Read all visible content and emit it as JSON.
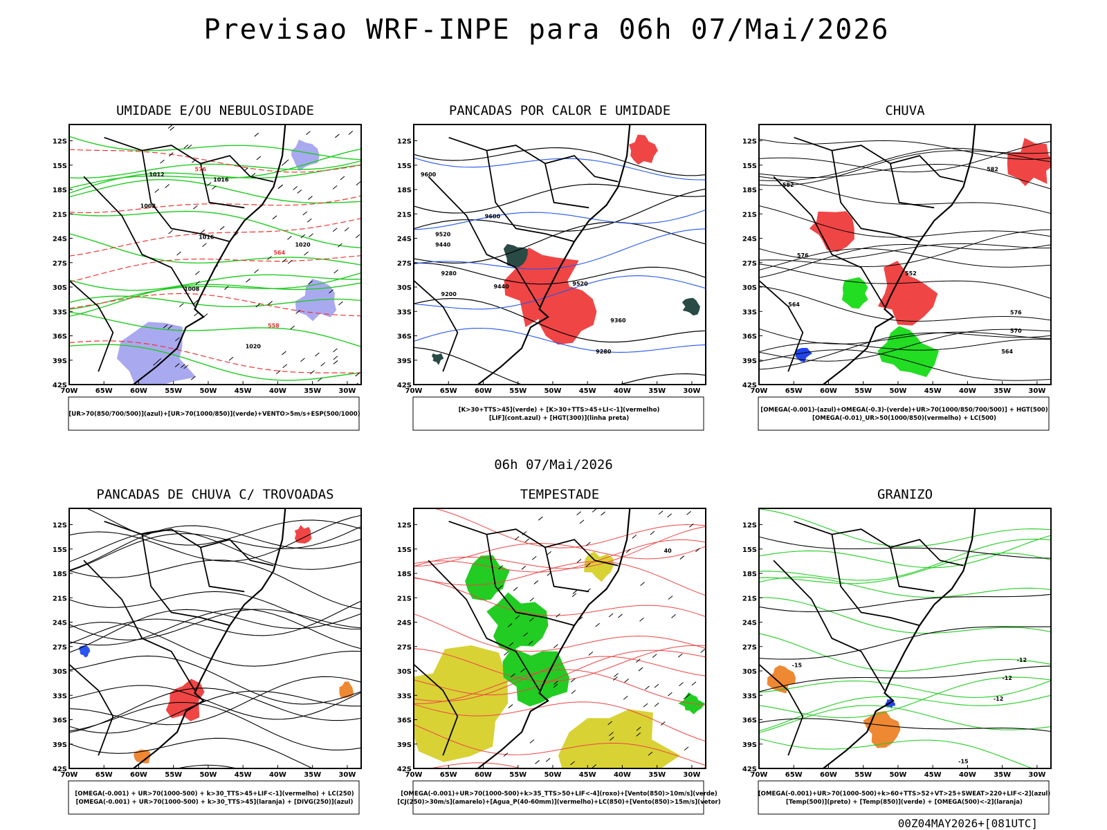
{
  "title": "Previsao WRF-INPE  para 06h 07/Mai/2026",
  "subtitle": "06h 07/Mai/2026",
  "footer": "00Z04MAY2026+[081UTC]",
  "axes": {
    "lat_labels": [
      "12S",
      "15S",
      "18S",
      "21S",
      "24S",
      "27S",
      "30S",
      "33S",
      "36S",
      "39S",
      "42S"
    ],
    "lon_labels": [
      "70W",
      "65W",
      "60W",
      "55W",
      "50W",
      "45W",
      "40W",
      "35W",
      "30W"
    ]
  },
  "panels": [
    {
      "title": "UMIDADE E/OU NEBULOSIDADE",
      "legend": [
        "[UR>70(850/700/500)](azul)+[UR>70(1000/850)](verde)+VENTO>5m/s+ESP(500/1000)"
      ],
      "contour_labels": [
        "1012",
        "1016",
        "1008",
        "1016",
        "1020",
        "1008",
        "576",
        "564",
        "558",
        "1020"
      ]
    },
    {
      "title": "PANCADAS POR CALOR E UMIDADE",
      "legend": [
        "[K>30+TTS>45](verde) + [K>30+TTS>45+LI<-1](vermelho)",
        "[LIF](cont.azul) + [HGT(300)](linha preta)"
      ],
      "contour_labels": [
        "9600",
        "9600",
        "9520",
        "9440",
        "9360",
        "9280",
        "9200",
        "9520",
        "9440",
        "9280"
      ]
    },
    {
      "title": "CHUVA",
      "legend": [
        "[OMEGA(-0.001)-(azul)+OMEGA(-0.3)-(verde)+UR>70(1000/850/700/500)] + HGT(500)",
        "[OMEGA(-0.01)_UR>50(1000/850)(vermelho) + LC(500)"
      ],
      "contour_labels": [
        "582",
        "576",
        "576",
        "570",
        "564",
        "552",
        "582",
        "564"
      ]
    },
    {
      "title": "PANCADAS DE CHUVA C/ TROVOADAS",
      "legend": [
        "[OMEGA(-0.001) + UR>70(1000-500) + k>30_TTS>45+LIF<-1](vermelho) + LC(250)",
        "[OMEGA(-0.001) + UR>70(1000-500) + k>30_TTS>45](laranja) + [DIVG(250)](azul)"
      ],
      "contour_labels": []
    },
    {
      "title": "TEMPESTADE",
      "legend": [
        "[OMEGA(-0.001)+UR>70(1000-500)+k>35_TTS>50+LIF<-4](roxo)+[Vento(850)>10m/s](verde)",
        "[CJ(250)>30m/s](amarelo)+[Agua_P(40-60mm)](vermelho)+LC(850)+[Vento(850)>15m/s](vetor)"
      ],
      "contour_labels": [
        "40"
      ]
    },
    {
      "title": "GRANIZO",
      "legend": [
        "[OMEGA(-0.001)+UR>70(1000-500)+k>60+TTS>52+VT>25+SWEAT>220+LIF<-2](azul)",
        "[Temp(500)](preto) + [Temp(850)](verde) + [OMEGA(500)<-2](laranja)"
      ],
      "contour_labels": [
        "-12",
        "-15",
        "-12",
        "-12",
        "-15"
      ]
    }
  ]
}
